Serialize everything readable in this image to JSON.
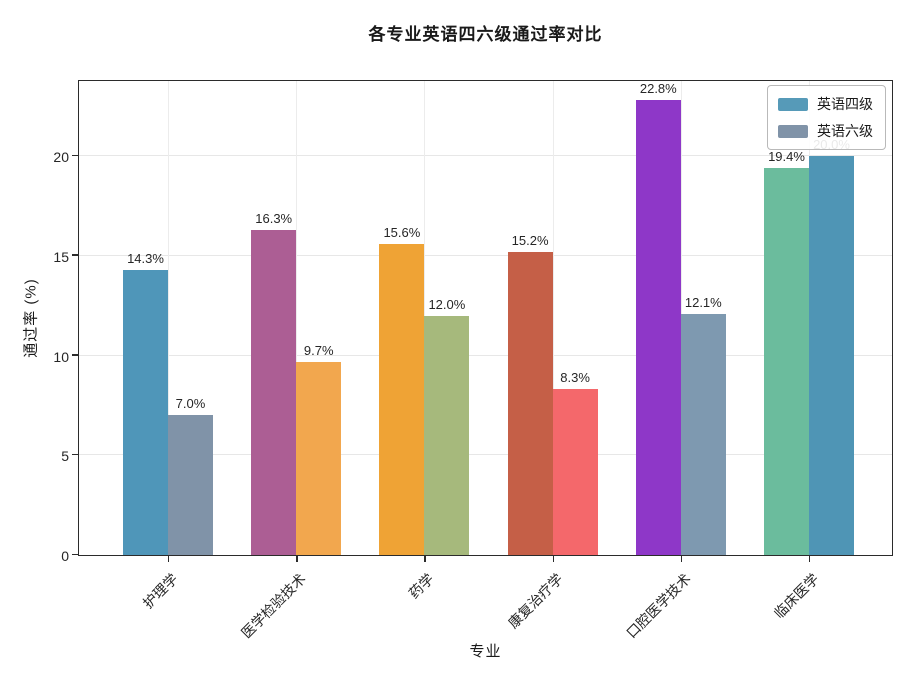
{
  "chart_data": {
    "type": "bar",
    "title": "各专业英语四六级通过率对比",
    "xlabel": "专业",
    "ylabel": "通过率 (%)",
    "categories": [
      "护理学",
      "医学检验技术",
      "药学",
      "康复治疗学",
      "口腔医学技术",
      "临床医学"
    ],
    "series": [
      {
        "name": "英语四级",
        "values": [
          14.3,
          16.3,
          15.6,
          15.2,
          22.8,
          19.4
        ],
        "labels": [
          "14.3%",
          "16.3%",
          "15.6%",
          "15.2%",
          "22.8%",
          "19.4%"
        ],
        "colors": [
          "#4f96b9",
          "#ac5e94",
          "#efa335",
          "#c55f47",
          "#8e37c8",
          "#6bbc9d"
        ]
      },
      {
        "name": "英语六级",
        "values": [
          7.0,
          9.7,
          12.0,
          8.3,
          12.1,
          20.0
        ],
        "labels": [
          "7.0%",
          "9.7%",
          "12.0%",
          "8.3%",
          "12.1%",
          "20.0%"
        ],
        "colors": [
          "#8093a8",
          "#f2a74e",
          "#a6b97c",
          "#f4686b",
          "#7e99b0",
          "#4f95b5"
        ]
      }
    ],
    "ylim": [
      0,
      23.86
    ],
    "yticks": [
      "0",
      "5",
      "10",
      "15",
      "20"
    ],
    "ytick_values": [
      0,
      5,
      10,
      15,
      20
    ],
    "grid": true,
    "legend_position": "upper right",
    "legend_colors": [
      "#569ab8",
      "#8093a8"
    ]
  }
}
